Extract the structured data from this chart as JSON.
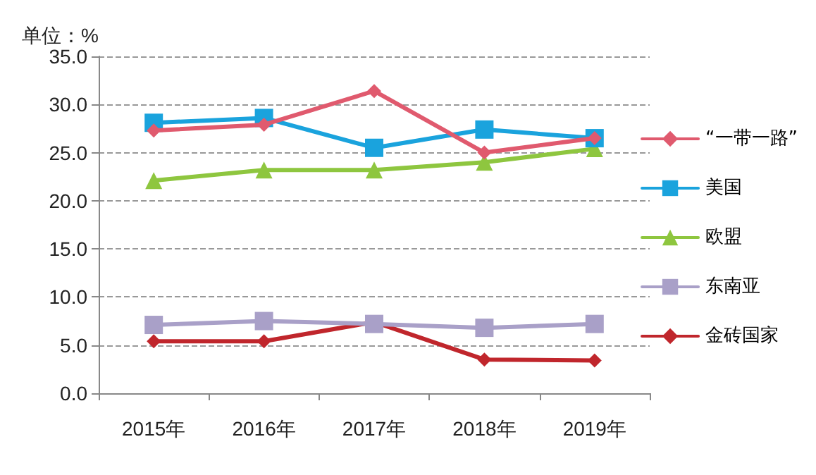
{
  "chart_data": {
    "type": "line",
    "ylabel": "单位：%",
    "categories": [
      "2015年",
      "2016年",
      "2017年",
      "2018年",
      "2019年"
    ],
    "series": [
      {
        "name": "“一带一路”",
        "color": "#e05a6e",
        "marker": "diamond",
        "values": [
          27.3,
          27.9,
          31.4,
          25.0,
          26.5
        ]
      },
      {
        "name": "美国",
        "color": "#1aa3dd",
        "marker": "square",
        "values": [
          28.1,
          28.6,
          25.5,
          27.4,
          26.5
        ]
      },
      {
        "name": "欧盟",
        "color": "#8ec63f",
        "marker": "triangle",
        "values": [
          22.1,
          23.2,
          23.2,
          24.0,
          25.4
        ]
      },
      {
        "name": "东南亚",
        "color": "#a9a0c8",
        "marker": "square",
        "values": [
          7.1,
          7.5,
          7.2,
          6.8,
          7.2
        ]
      },
      {
        "name": "金砖国家",
        "color": "#c0262c",
        "marker": "diamond",
        "values": [
          5.4,
          5.4,
          7.4,
          3.5,
          3.4
        ]
      }
    ],
    "ylim": [
      0,
      35
    ],
    "yticks": [
      {
        "value": 0,
        "label": "0.0"
      },
      {
        "value": 5,
        "label": "5.0"
      },
      {
        "value": 10,
        "label": "10.0"
      },
      {
        "value": 15,
        "label": "15.0"
      },
      {
        "value": 20,
        "label": "20.0"
      },
      {
        "value": 25,
        "label": "25.0"
      },
      {
        "value": 30,
        "label": "30.0"
      },
      {
        "value": 35,
        "label": "35.0"
      }
    ],
    "grid": "y",
    "legend": "right",
    "line_style": "solid"
  }
}
